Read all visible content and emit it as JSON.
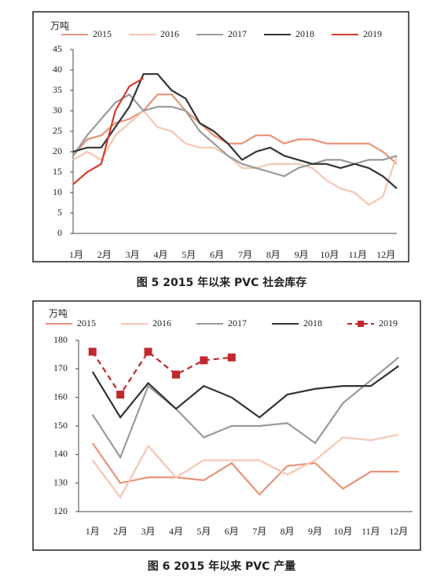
{
  "chart_data": [
    {
      "type": "line",
      "title": "图 5  2015 年以来 PVC 社会库存",
      "y_label": "万吨",
      "categories": [
        "1月",
        null,
        "2月",
        null,
        "3月",
        null,
        "4月",
        null,
        "5月",
        null,
        "6月",
        null,
        "7月",
        null,
        "8月",
        null,
        "9月",
        null,
        "10月",
        null,
        "11月",
        null,
        "12月",
        null
      ],
      "series": [
        {
          "name": "2015",
          "color": "#e8937a",
          "values": [
            19,
            23,
            24,
            27,
            28,
            30,
            34,
            34,
            30,
            27,
            24,
            22,
            22,
            24,
            24,
            22,
            23,
            23,
            22,
            22,
            22,
            22,
            20,
            17
          ]
        },
        {
          "name": "2016",
          "color": "#f5c6b4",
          "values": [
            18,
            20,
            18,
            24,
            27,
            30,
            26,
            25,
            22,
            21,
            21,
            19,
            16,
            16,
            17,
            17,
            17,
            16,
            13,
            11,
            10,
            7,
            9,
            19
          ]
        },
        {
          "name": "2017",
          "color": "#9a9a9a",
          "values": [
            19,
            24,
            28,
            32,
            34,
            30,
            31,
            31,
            30,
            25,
            22,
            19,
            17,
            16,
            15,
            14,
            16,
            17,
            18,
            18,
            17,
            18,
            18,
            19
          ]
        },
        {
          "name": "2018",
          "color": "#333333",
          "values": [
            20,
            21,
            21,
            26,
            31,
            39,
            39,
            35,
            33,
            27,
            25,
            22,
            18,
            20,
            21,
            19,
            18,
            17,
            17,
            16,
            17,
            16,
            14,
            11
          ]
        },
        {
          "name": "2019",
          "color": "#d63c2f",
          "values": [
            12,
            15,
            17,
            30,
            36,
            38,
            null,
            null,
            null,
            null,
            null,
            null,
            null,
            null,
            null,
            null,
            null,
            null,
            null,
            null,
            null,
            null,
            null,
            null
          ]
        }
      ],
      "ylim": [
        0,
        45
      ],
      "yticks": [
        0,
        5,
        10,
        15,
        20,
        25,
        30,
        35,
        40,
        45
      ]
    },
    {
      "type": "line",
      "title": "图 6  2015 年以来 PVC 产量",
      "y_label": "万吨",
      "categories": [
        "1月",
        "2月",
        "3月",
        "4月",
        "5月",
        "6月",
        "7月",
        "8月",
        "9月",
        "10月",
        "11月",
        "12月"
      ],
      "series": [
        {
          "name": "2015",
          "color": "#e8937a",
          "values": [
            144,
            130,
            132,
            132,
            131,
            137,
            126,
            136,
            137,
            128,
            134,
            134
          ]
        },
        {
          "name": "2016",
          "color": "#f5c6b4",
          "values": [
            138,
            125,
            143,
            132,
            138,
            138,
            138,
            133,
            138,
            146,
            145,
            147
          ]
        },
        {
          "name": "2017",
          "color": "#9a9a9a",
          "values": [
            154,
            139,
            164,
            156,
            146,
            150,
            150,
            151,
            144,
            158,
            166,
            174
          ]
        },
        {
          "name": "2018",
          "color": "#333333",
          "values": [
            169,
            153,
            165,
            156,
            164,
            160,
            153,
            161,
            163,
            164,
            164,
            171
          ]
        },
        {
          "name": "2019",
          "color": "#c0282d",
          "dashed": true,
          "marker": "square",
          "values": [
            176,
            161,
            176,
            168,
            173,
            174,
            null,
            null,
            null,
            null,
            null,
            null
          ]
        }
      ],
      "ylim": [
        120,
        180
      ],
      "yticks": [
        120,
        130,
        140,
        150,
        160,
        170,
        180
      ]
    }
  ]
}
